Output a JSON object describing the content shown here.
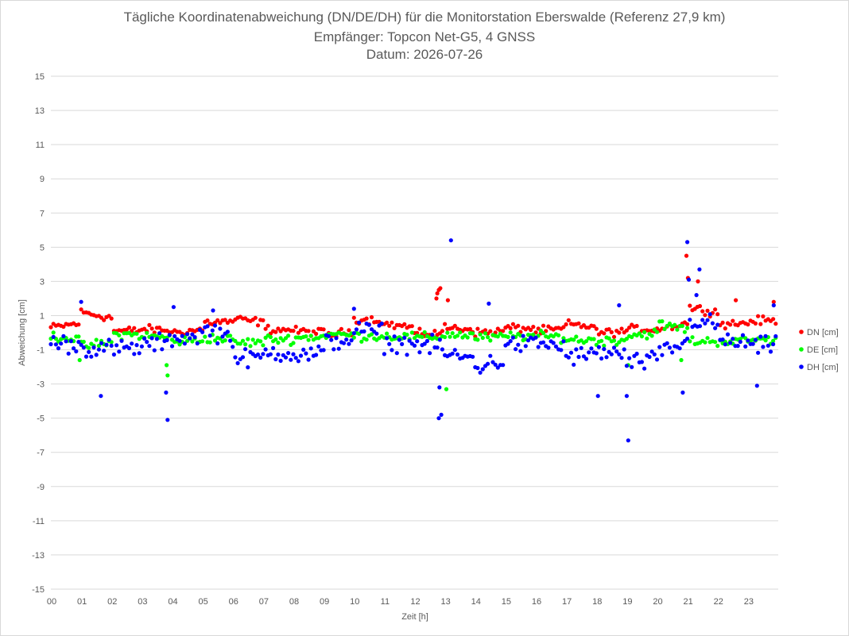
{
  "chart_data": {
    "type": "scatter",
    "title": "Tägliche Koordinatenabweichung (DN/DE/DH) für die Monitorstation Eberswalde (Referenz 27,9 km)",
    "subtitle": "Empfänger: Topcon Net-G5, 4 GNSS",
    "date_line": "Datum: 2026-07-26",
    "xlabel": "Zeit [h]",
    "ylabel": "Abweichung [cm]",
    "xlim": [
      0,
      24
    ],
    "ylim": [
      -15,
      15
    ],
    "x_tick_labels": [
      "00",
      "01",
      "02",
      "03",
      "04",
      "05",
      "06",
      "07",
      "08",
      "09",
      "10",
      "11",
      "12",
      "13",
      "14",
      "15",
      "16",
      "17",
      "18",
      "19",
      "20",
      "21",
      "22",
      "23"
    ],
    "y_tick_values": [
      15,
      13,
      11,
      9,
      7,
      5,
      3,
      1,
      -1,
      -3,
      -5,
      -7,
      -9,
      -11,
      -13,
      -15
    ],
    "grid": "horizontal",
    "legend_position": "right",
    "sample_interval_min": 5,
    "series": [
      {
        "name": "DN [cm]",
        "color": "#ff0000",
        "hourly_base": [
          0.3,
          1.2,
          0.1,
          0.2,
          0.0,
          0.6,
          0.8,
          0.2,
          0.1,
          -0.2,
          0.8,
          0.5,
          -0.1,
          0.3,
          0.0,
          0.3,
          0.1,
          0.5,
          0.0,
          0.2,
          0.2,
          1.5,
          0.5,
          0.7
        ],
        "amp": 0.35,
        "spikes": [
          {
            "x": 12.75,
            "y": 2.3
          },
          {
            "x": 12.8,
            "y": 2.5
          },
          {
            "x": 12.85,
            "y": 2.6
          },
          {
            "x": 12.72,
            "y": 2.0
          },
          {
            "x": 13.1,
            "y": 1.9
          },
          {
            "x": 20.97,
            "y": 4.5
          },
          {
            "x": 21.02,
            "y": 3.2
          },
          {
            "x": 21.35,
            "y": 3.0
          },
          {
            "x": 22.6,
            "y": 1.9
          },
          {
            "x": 23.85,
            "y": 1.8
          }
        ]
      },
      {
        "name": "DE [cm]",
        "color": "#00ff00",
        "hourly_base": [
          -0.2,
          -0.8,
          -0.1,
          -0.2,
          -0.5,
          -0.3,
          -0.6,
          -0.4,
          -0.3,
          -0.1,
          -0.2,
          -0.2,
          -0.3,
          -0.1,
          -0.3,
          -0.2,
          -0.2,
          -0.4,
          -0.5,
          -0.2,
          0.5,
          -0.5,
          -0.5,
          -0.4
        ],
        "amp": 0.4,
        "spikes": [
          {
            "x": 3.82,
            "y": -1.9
          },
          {
            "x": 3.85,
            "y": -2.5
          },
          {
            "x": 13.05,
            "y": -3.3
          },
          {
            "x": 19.05,
            "y": -1.9
          },
          {
            "x": 20.8,
            "y": -1.6
          },
          {
            "x": 0.95,
            "y": -1.6
          }
        ]
      },
      {
        "name": "DH [cm]",
        "color": "#0000ff",
        "hourly_base": [
          -0.6,
          -0.9,
          -1.0,
          -0.7,
          -0.3,
          0.3,
          -1.6,
          -1.1,
          -1.4,
          -0.6,
          0.2,
          -0.6,
          -0.7,
          -1.3,
          -2.0,
          -0.7,
          -0.6,
          -1.4,
          -1.1,
          -1.8,
          -1.2,
          0.8,
          -0.5,
          -0.8
        ],
        "amp": 0.8,
        "spikes": [
          {
            "x": 1.0,
            "y": 1.8
          },
          {
            "x": 1.65,
            "y": -3.7
          },
          {
            "x": 3.8,
            "y": -3.5
          },
          {
            "x": 3.85,
            "y": -5.1
          },
          {
            "x": 4.05,
            "y": 1.5
          },
          {
            "x": 5.35,
            "y": 1.3
          },
          {
            "x": 10.0,
            "y": 1.4
          },
          {
            "x": 12.8,
            "y": -5.0
          },
          {
            "x": 12.88,
            "y": -4.8
          },
          {
            "x": 12.82,
            "y": -3.2
          },
          {
            "x": 13.2,
            "y": 5.4
          },
          {
            "x": 14.45,
            "y": 1.7
          },
          {
            "x": 18.05,
            "y": -3.7
          },
          {
            "x": 19.05,
            "y": -6.3
          },
          {
            "x": 19.0,
            "y": -3.7
          },
          {
            "x": 18.75,
            "y": 1.6
          },
          {
            "x": 20.85,
            "y": -3.5
          },
          {
            "x": 21.0,
            "y": 5.3
          },
          {
            "x": 21.05,
            "y": 3.1
          },
          {
            "x": 21.4,
            "y": 3.7
          },
          {
            "x": 21.3,
            "y": 2.2
          },
          {
            "x": 23.3,
            "y": -3.1
          },
          {
            "x": 23.85,
            "y": 1.6
          }
        ]
      }
    ]
  }
}
